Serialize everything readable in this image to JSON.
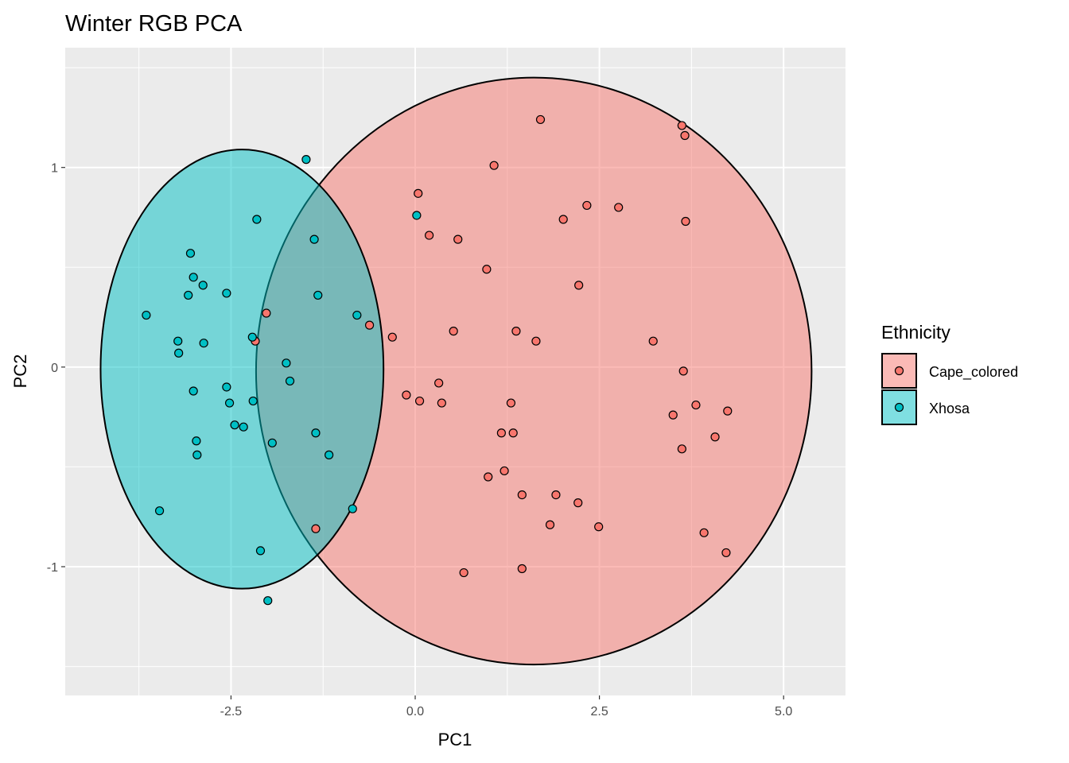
{
  "chart_data": {
    "type": "scatter",
    "title": "Winter RGB PCA",
    "xlabel": "PC1",
    "ylabel": "PC2",
    "xlim": [
      -4.75,
      5.84
    ],
    "ylim": [
      -1.645,
      1.6
    ],
    "x_ticks": [
      -2.5,
      0.0,
      2.5,
      5.0
    ],
    "x_tick_labels": [
      "-2.5",
      "0.0",
      "2.5",
      "5.0"
    ],
    "y_ticks": [
      -1,
      0,
      1
    ],
    "y_tick_labels": [
      "-1",
      "0",
      "1"
    ],
    "grid": true,
    "legend": {
      "title": "Ethnicity",
      "placement": "right"
    },
    "series": [
      {
        "name": "Cape_colored",
        "color": "#F8766D",
        "ellipse": {
          "center": [
            1.61,
            -0.02
          ],
          "semi_axes": [
            3.77,
            1.47
          ]
        },
        "points": [
          [
            1.7,
            1.24
          ],
          [
            3.62,
            1.21
          ],
          [
            3.66,
            1.16
          ],
          [
            1.07,
            1.01
          ],
          [
            0.04,
            0.87
          ],
          [
            2.33,
            0.81
          ],
          [
            2.01,
            0.74
          ],
          [
            2.76,
            0.8
          ],
          [
            3.67,
            0.73
          ],
          [
            0.19,
            0.66
          ],
          [
            0.58,
            0.64
          ],
          [
            0.97,
            0.49
          ],
          [
            2.22,
            0.41
          ],
          [
            -2.02,
            0.27
          ],
          [
            -0.62,
            0.21
          ],
          [
            -0.31,
            0.15
          ],
          [
            0.52,
            0.18
          ],
          [
            1.37,
            0.18
          ],
          [
            1.64,
            0.13
          ],
          [
            3.23,
            0.13
          ],
          [
            -2.17,
            0.13
          ],
          [
            3.64,
            -0.02
          ],
          [
            0.32,
            -0.08
          ],
          [
            -0.12,
            -0.14
          ],
          [
            0.06,
            -0.17
          ],
          [
            0.36,
            -0.18
          ],
          [
            1.3,
            -0.18
          ],
          [
            3.81,
            -0.19
          ],
          [
            3.5,
            -0.24
          ],
          [
            4.24,
            -0.22
          ],
          [
            1.17,
            -0.33
          ],
          [
            1.33,
            -0.33
          ],
          [
            4.07,
            -0.35
          ],
          [
            3.62,
            -0.41
          ],
          [
            1.21,
            -0.52
          ],
          [
            0.99,
            -0.55
          ],
          [
            1.45,
            -0.64
          ],
          [
            1.91,
            -0.64
          ],
          [
            2.21,
            -0.68
          ],
          [
            1.83,
            -0.79
          ],
          [
            2.49,
            -0.8
          ],
          [
            -1.35,
            -0.81
          ],
          [
            3.92,
            -0.83
          ],
          [
            4.22,
            -0.93
          ],
          [
            0.66,
            -1.03
          ],
          [
            1.45,
            -1.01
          ]
        ]
      },
      {
        "name": "Xhosa",
        "color": "#00BFC4",
        "ellipse": {
          "center": [
            -2.35,
            -0.01
          ],
          "semi_axes": [
            1.92,
            1.1
          ]
        },
        "points": [
          [
            -1.48,
            1.04
          ],
          [
            -2.15,
            0.74
          ],
          [
            0.02,
            0.76
          ],
          [
            -1.37,
            0.64
          ],
          [
            -3.05,
            0.57
          ],
          [
            -3.01,
            0.45
          ],
          [
            -2.88,
            0.41
          ],
          [
            -3.08,
            0.36
          ],
          [
            -2.56,
            0.37
          ],
          [
            -1.32,
            0.36
          ],
          [
            -3.65,
            0.26
          ],
          [
            -0.79,
            0.26
          ],
          [
            -3.22,
            0.13
          ],
          [
            -2.21,
            0.15
          ],
          [
            -3.21,
            0.07
          ],
          [
            -2.87,
            0.12
          ],
          [
            -1.75,
            0.02
          ],
          [
            -1.7,
            -0.07
          ],
          [
            -3.01,
            -0.12
          ],
          [
            -2.56,
            -0.1
          ],
          [
            -2.52,
            -0.18
          ],
          [
            -2.2,
            -0.17
          ],
          [
            -1.35,
            -0.33
          ],
          [
            -2.45,
            -0.29
          ],
          [
            -2.33,
            -0.3
          ],
          [
            -1.94,
            -0.38
          ],
          [
            -2.97,
            -0.37
          ],
          [
            -2.96,
            -0.44
          ],
          [
            -1.17,
            -0.44
          ],
          [
            -0.85,
            -0.71
          ],
          [
            -3.47,
            -0.72
          ],
          [
            -2.1,
            -0.92
          ],
          [
            -2.0,
            -1.17
          ]
        ]
      }
    ]
  }
}
